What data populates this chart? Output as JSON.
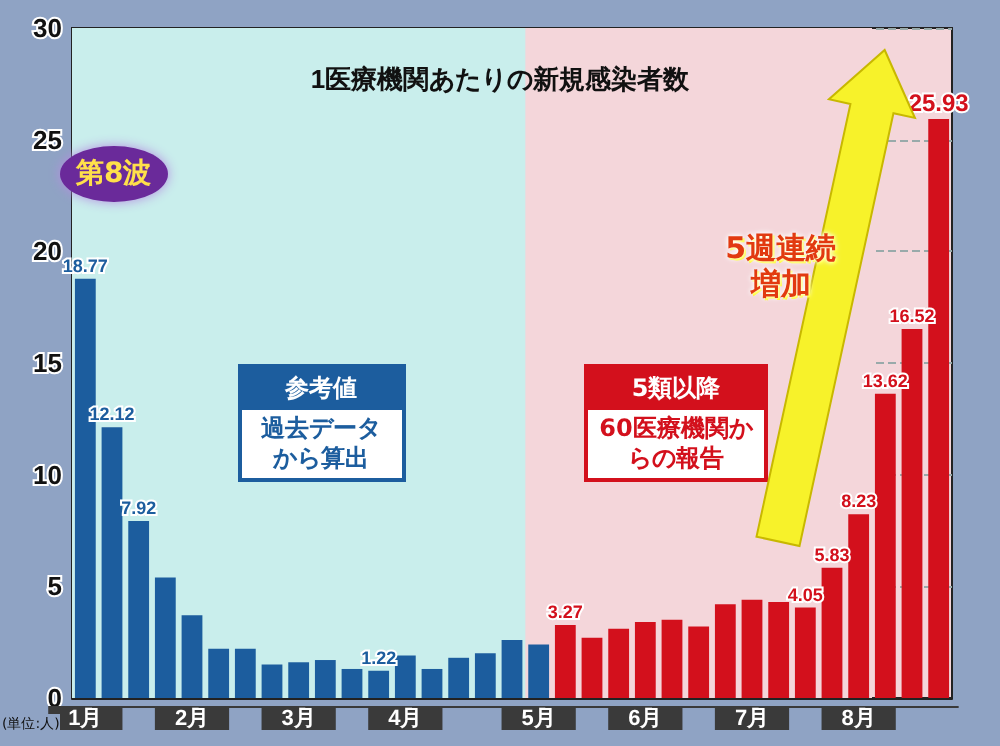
{
  "chart_data": {
    "type": "bar",
    "title": "1医療機関あたりの新規感染者数",
    "ylabel": "(単位:人)",
    "categories": [
      "1月",
      null,
      null,
      null,
      "2月",
      null,
      null,
      null,
      "3月",
      null,
      null,
      null,
      "4月",
      null,
      null,
      null,
      null,
      "5月",
      null,
      null,
      null,
      "6月",
      null,
      null,
      null,
      "7月",
      null,
      null,
      null,
      "8月",
      null,
      null,
      null
    ],
    "values": [
      18.77,
      12.12,
      7.92,
      5.4,
      3.7,
      2.2,
      2.2,
      1.5,
      1.6,
      1.7,
      1.3,
      1.22,
      1.9,
      1.3,
      1.8,
      2.0,
      2.6,
      2.4,
      3.27,
      2.7,
      3.1,
      3.4,
      3.5,
      3.2,
      4.2,
      4.4,
      4.3,
      4.05,
      5.83,
      8.23,
      13.62,
      16.52,
      25.93
    ],
    "colors": [
      "#1c5d9e",
      "#1c5d9e",
      "#1c5d9e",
      "#1c5d9e",
      "#1c5d9e",
      "#1c5d9e",
      "#1c5d9e",
      "#1c5d9e",
      "#1c5d9e",
      "#1c5d9e",
      "#1c5d9e",
      "#1c5d9e",
      "#1c5d9e",
      "#1c5d9e",
      "#1c5d9e",
      "#1c5d9e",
      "#1c5d9e",
      "#1c5d9e",
      "#d3101c",
      "#d3101c",
      "#d3101c",
      "#d3101c",
      "#d3101c",
      "#d3101c",
      "#d3101c",
      "#d3101c",
      "#d3101c",
      "#d3101c",
      "#d3101c",
      "#d3101c",
      "#d3101c",
      "#d3101c",
      "#d3101c"
    ],
    "value_labels": [
      "18.77",
      "12.12",
      "7.92",
      null,
      null,
      null,
      null,
      null,
      null,
      null,
      null,
      "1.22",
      null,
      null,
      null,
      null,
      null,
      null,
      "3.27",
      null,
      null,
      null,
      null,
      null,
      null,
      null,
      null,
      "4.05",
      "5.83",
      "8.23",
      "13.62",
      "16.52",
      "25.93"
    ],
    "ylim": [
      0,
      30
    ],
    "yticks": [
      0,
      5,
      10,
      15,
      20,
      25,
      30
    ],
    "grid": "y",
    "bands": [
      {
        "axis": "x",
        "from": "1月",
        "to": "5月",
        "label": "参考値",
        "color": "#c9eeec"
      },
      {
        "axis": "x",
        "from": "5月",
        "to": "8月",
        "label": "5類以降",
        "color": "#f4d6da"
      }
    ],
    "annotations": [
      "第8波",
      "5週連続増加",
      "過去データから算出",
      "60医療機関からの報告"
    ]
  }
}
